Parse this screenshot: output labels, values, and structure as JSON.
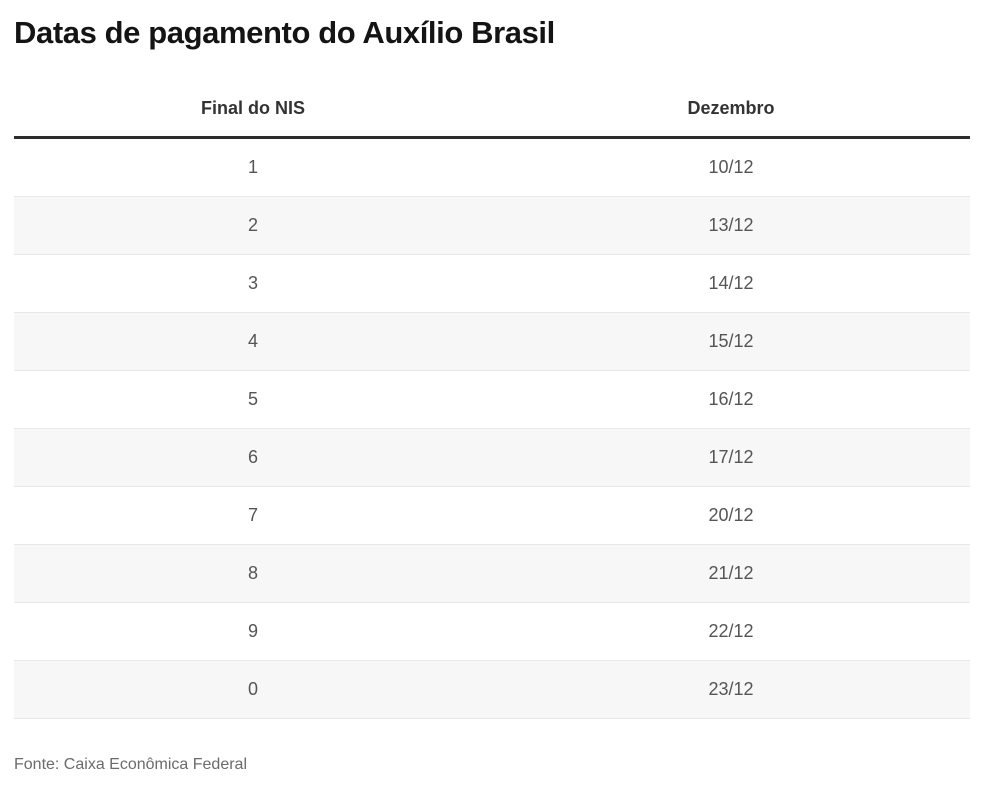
{
  "title": "Datas de pagamento do Auxílio Brasil",
  "source": "Fonte: Caixa Econômica Federal",
  "table": {
    "headers": [
      "Final do NIS",
      "Dezembro"
    ],
    "rows": [
      {
        "nis": "1",
        "dezembro": "10/12"
      },
      {
        "nis": "2",
        "dezembro": "13/12"
      },
      {
        "nis": "3",
        "dezembro": "14/12"
      },
      {
        "nis": "4",
        "dezembro": "15/12"
      },
      {
        "nis": "5",
        "dezembro": "16/12"
      },
      {
        "nis": "6",
        "dezembro": "17/12"
      },
      {
        "nis": "7",
        "dezembro": "20/12"
      },
      {
        "nis": "8",
        "dezembro": "21/12"
      },
      {
        "nis": "9",
        "dezembro": "22/12"
      },
      {
        "nis": "0",
        "dezembro": "23/12"
      }
    ]
  },
  "chart_data": {
    "type": "table",
    "title": "Datas de pagamento do Auxílio Brasil",
    "columns": [
      "Final do NIS",
      "Dezembro"
    ],
    "rows": [
      [
        "1",
        "10/12"
      ],
      [
        "2",
        "13/12"
      ],
      [
        "3",
        "14/12"
      ],
      [
        "4",
        "15/12"
      ],
      [
        "5",
        "16/12"
      ],
      [
        "6",
        "17/12"
      ],
      [
        "7",
        "20/12"
      ],
      [
        "8",
        "21/12"
      ],
      [
        "9",
        "22/12"
      ],
      [
        "0",
        "23/12"
      ]
    ],
    "source": "Fonte: Caixa Econômica Federal"
  },
  "colors": {
    "title_text": "#141414",
    "header_text": "#333333",
    "header_rule": "#2d2d2d",
    "cell_text": "#555555",
    "row_alt_background": "#f7f7f7",
    "row_separator": "#e8e8e8",
    "source_text": "#6b6b6b"
  }
}
